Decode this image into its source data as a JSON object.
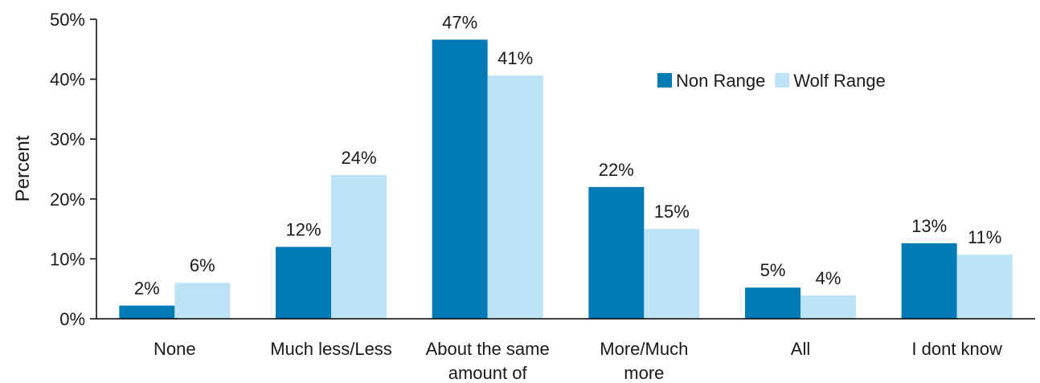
{
  "chart_data": {
    "type": "bar",
    "title": "",
    "xlabel": "",
    "ylabel": "Percent",
    "ylim": [
      0,
      50
    ],
    "y_ticks": [
      "0%",
      "10%",
      "20%",
      "30%",
      "40%",
      "50%"
    ],
    "y_tick_values": [
      0,
      10,
      20,
      30,
      40,
      50
    ],
    "grid": false,
    "legend_position": "top-right",
    "categories": [
      [
        "None"
      ],
      [
        "Much less/Less"
      ],
      [
        "About the same",
        "amount of"
      ],
      [
        "More/Much",
        "more"
      ],
      [
        "All"
      ],
      [
        "I dont know"
      ]
    ],
    "series": [
      {
        "name": "Non Range",
        "color": "#007BB5",
        "values": [
          2.2,
          12,
          46.6,
          22,
          5.2,
          12.6
        ],
        "labels": [
          "2%",
          "12%",
          "47%",
          "22%",
          "5%",
          "13%"
        ]
      },
      {
        "name": "Wolf Range",
        "color": "#BDE3F6",
        "values": [
          6,
          24,
          40.6,
          15,
          3.9,
          10.7
        ],
        "labels": [
          "6%",
          "24%",
          "41%",
          "15%",
          "4%",
          "11%"
        ]
      }
    ]
  }
}
